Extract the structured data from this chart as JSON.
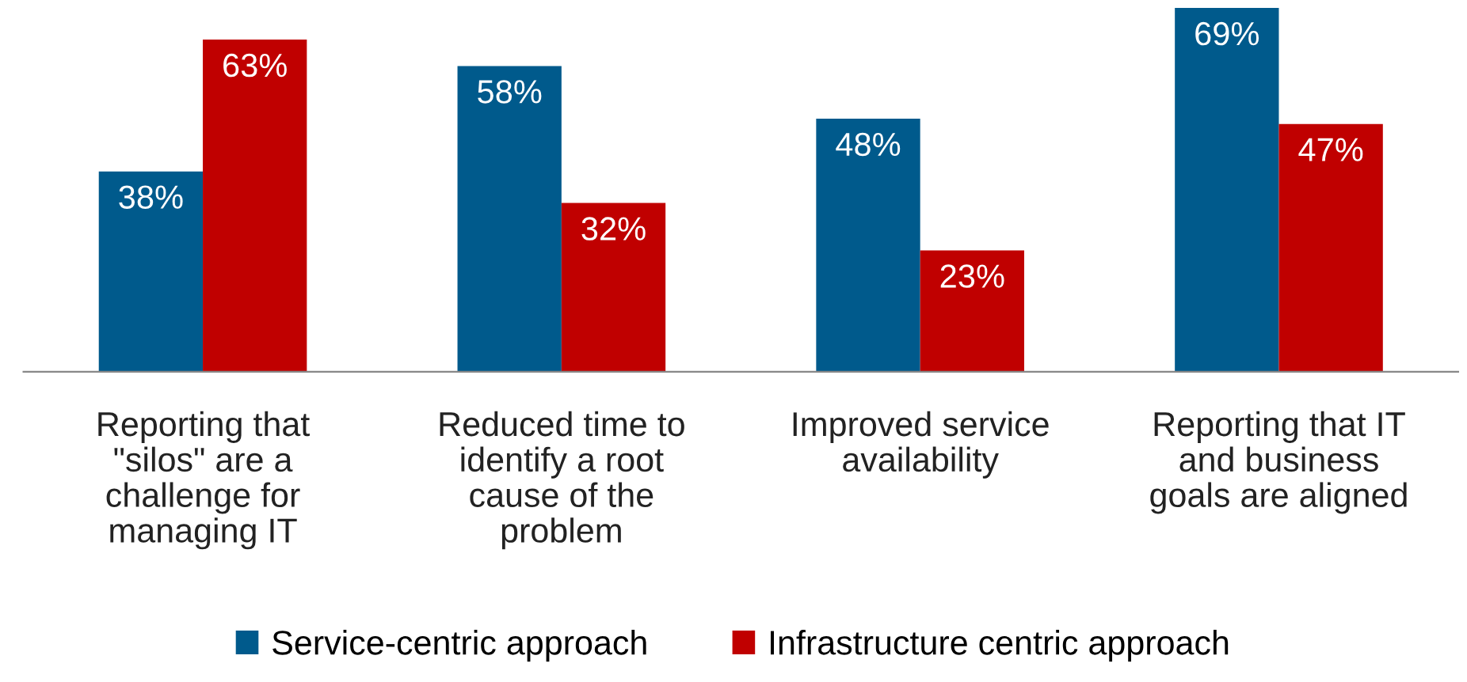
{
  "chart_data": {
    "type": "bar",
    "categories": [
      "Reporting that\n\"silos\" are a\nchallenge for\nmanaging IT",
      "Reduced time to\nidentify a root\ncause of the\nproblem",
      "Improved service\navailability",
      "Reporting that IT\nand business\ngoals are aligned"
    ],
    "series": [
      {
        "name": "Service-centric approach",
        "color": "#005a8c",
        "values": [
          38,
          58,
          48,
          69
        ],
        "value_labels": [
          "38%",
          "58%",
          "48%",
          "69%"
        ]
      },
      {
        "name": "Infrastructure centric approach",
        "color": "#c00000",
        "values": [
          63,
          32,
          23,
          47
        ],
        "value_labels": [
          "63%",
          "32%",
          "23%",
          "47%"
        ]
      }
    ],
    "legend": "bottom",
    "grid": false
  }
}
